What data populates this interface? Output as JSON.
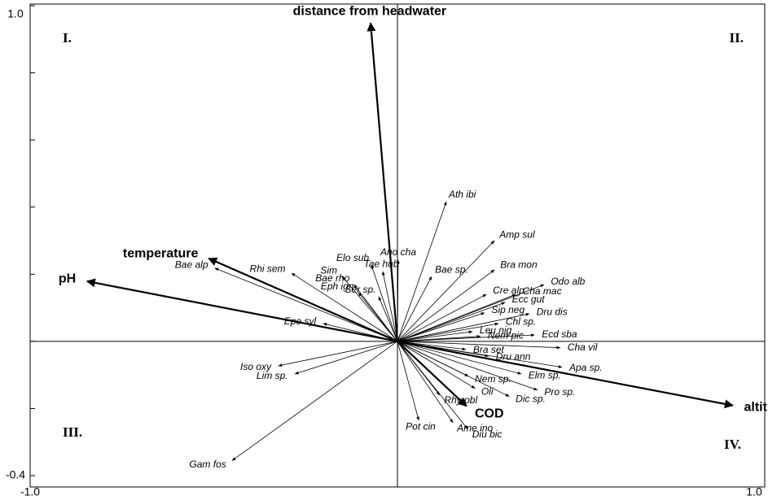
{
  "chart_data": {
    "type": "biplot",
    "xlim": [
      -1.0,
      1.0
    ],
    "ylim": [
      -0.4,
      1.0
    ],
    "xticks": [
      {
        "value": -1.0,
        "label": "-1.0"
      },
      {
        "value": 1.0,
        "label": "1.0"
      }
    ],
    "yticks": [
      {
        "value": -0.4,
        "label": "-0.4"
      },
      {
        "value": 1.0,
        "label": "1.0"
      }
    ],
    "y_minor_ticks": [
      -0.2,
      0,
      0.2,
      0.4,
      0.6,
      0.8
    ],
    "quadrant_labels": [
      "I.",
      "II.",
      "III.",
      "IV."
    ],
    "environmental_vectors": [
      {
        "name": "distance from headwater",
        "x": -0.073,
        "y": 0.948
      },
      {
        "name": "temperature",
        "x": -0.514,
        "y": 0.247
      },
      {
        "name": "pH",
        "x": -0.845,
        "y": 0.179
      },
      {
        "name": "altitude",
        "x": 0.913,
        "y": -0.191
      },
      {
        "name": "COD",
        "x": 0.188,
        "y": -0.193
      }
    ],
    "species_vectors": [
      {
        "name": "Ath ibi",
        "x": 0.133,
        "y": 0.416
      },
      {
        "name": "Amp sul",
        "x": 0.264,
        "y": 0.3
      },
      {
        "name": "Bra mon",
        "x": 0.264,
        "y": 0.213
      },
      {
        "name": "Odo alb",
        "x": 0.399,
        "y": 0.169
      },
      {
        "name": "Cha mac",
        "x": 0.322,
        "y": 0.14
      },
      {
        "name": "Cre alp",
        "x": 0.242,
        "y": 0.14
      },
      {
        "name": "Ecc gut",
        "x": 0.293,
        "y": 0.116
      },
      {
        "name": "Dru dis",
        "x": 0.359,
        "y": 0.082
      },
      {
        "name": "Sip neg",
        "x": 0.237,
        "y": 0.085
      },
      {
        "name": "Chl sp.",
        "x": 0.275,
        "y": 0.053
      },
      {
        "name": "Leu nig",
        "x": 0.204,
        "y": 0.029
      },
      {
        "name": "Ecd sba",
        "x": 0.373,
        "y": 0.019
      },
      {
        "name": "Nem pic",
        "x": 0.226,
        "y": 0.015
      },
      {
        "name": "Cha vil",
        "x": 0.443,
        "y": -0.019
      },
      {
        "name": "Bra set",
        "x": 0.186,
        "y": -0.024
      },
      {
        "name": "Dru ann",
        "x": 0.248,
        "y": -0.044
      },
      {
        "name": "Apa sp.",
        "x": 0.448,
        "y": -0.077
      },
      {
        "name": "Elm sp.",
        "x": 0.337,
        "y": -0.097
      },
      {
        "name": "Nem sp.",
        "x": 0.193,
        "y": -0.104
      },
      {
        "name": "Pro sp.",
        "x": 0.381,
        "y": -0.145
      },
      {
        "name": "Oli",
        "x": 0.211,
        "y": -0.14
      },
      {
        "name": "Dic sp.",
        "x": 0.304,
        "y": -0.164
      },
      {
        "name": "Rhy obl",
        "x": 0.115,
        "y": -0.16
      },
      {
        "name": "Pot cin",
        "x": 0.058,
        "y": -0.235
      },
      {
        "name": "Ame ino",
        "x": 0.151,
        "y": -0.242
      },
      {
        "name": "Diu bic",
        "x": 0.191,
        "y": -0.261
      },
      {
        "name": "Gam fos",
        "x": -0.45,
        "y": -0.355
      },
      {
        "name": "Iso oxy",
        "x": -0.324,
        "y": -0.073
      },
      {
        "name": "Lim sp.",
        "x": -0.279,
        "y": -0.097
      },
      {
        "name": "Bae alp",
        "x": -0.497,
        "y": 0.218
      },
      {
        "name": "Rhi sem",
        "x": -0.288,
        "y": 0.203
      },
      {
        "name": "Epe syl",
        "x": -0.202,
        "y": 0.053
      },
      {
        "name": "Sim",
        "x": -0.151,
        "y": 0.193
      },
      {
        "name": "Elo sub",
        "x": -0.071,
        "y": 0.227
      },
      {
        "name": "Bae rho",
        "x": -0.118,
        "y": 0.169
      },
      {
        "name": "Eph ign",
        "x": -0.106,
        "y": 0.145
      },
      {
        "name": "Ano cha",
        "x": 0.002,
        "y": 0.242
      },
      {
        "name": "Tae hub",
        "x": -0.04,
        "y": 0.208
      },
      {
        "name": "Ser sp.",
        "x": -0.051,
        "y": 0.133
      },
      {
        "name": "Bae sp.",
        "x": 0.093,
        "y": 0.193
      }
    ]
  }
}
